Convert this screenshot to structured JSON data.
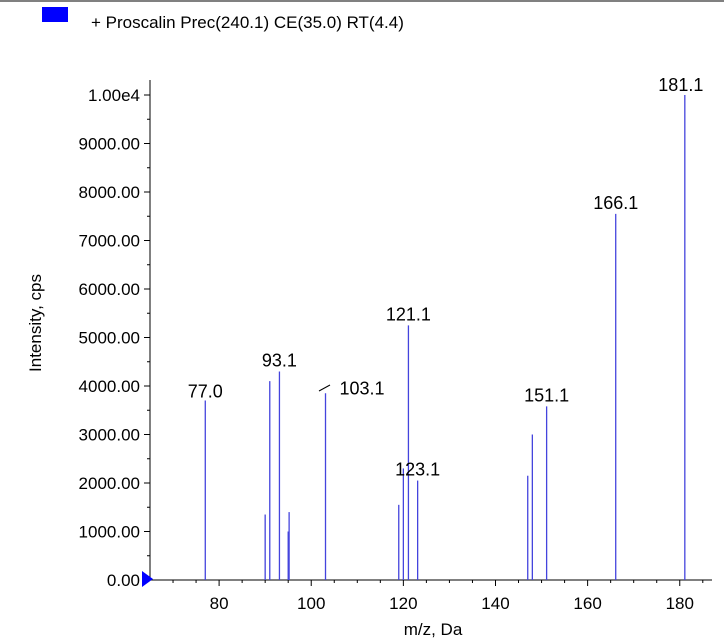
{
  "chart_data": {
    "type": "bar",
    "legend": [
      {
        "label": "+ Proscalin Prec(240.1) CE(35.0) RT(4.4)",
        "color": "#0000ff"
      }
    ],
    "xlabel": "m/z, Da",
    "ylabel": "Intensity, cps",
    "xlim": [
      65,
      187
    ],
    "ylim": [
      0,
      10000
    ],
    "x_ticks": [
      80,
      100,
      120,
      140,
      160,
      180
    ],
    "x_tick_labels": [
      "80",
      "100",
      "120",
      "140",
      "160",
      "180"
    ],
    "y_ticks": [
      0,
      1000,
      2000,
      3000,
      4000,
      5000,
      6000,
      7000,
      8000,
      9000,
      10000
    ],
    "y_tick_labels": [
      "0.00",
      "1000.00",
      "2000.00",
      "3000.00",
      "4000.00",
      "5000.00",
      "6000.00",
      "7000.00",
      "8000.00",
      "9000.00",
      "1.00e4"
    ],
    "line_color": "#4444dd",
    "peaks": [
      {
        "mz": 77.0,
        "intensity": 3700
      },
      {
        "mz": 90.0,
        "intensity": 1350
      },
      {
        "mz": 91.0,
        "intensity": 4100
      },
      {
        "mz": 93.1,
        "intensity": 4300
      },
      {
        "mz": 95.0,
        "intensity": 1000
      },
      {
        "mz": 95.2,
        "intensity": 1400
      },
      {
        "mz": 103.1,
        "intensity": 3850
      },
      {
        "mz": 119.0,
        "intensity": 1550
      },
      {
        "mz": 120.0,
        "intensity": 2300
      },
      {
        "mz": 121.1,
        "intensity": 5250
      },
      {
        "mz": 123.1,
        "intensity": 2050
      },
      {
        "mz": 147.0,
        "intensity": 2150
      },
      {
        "mz": 148.0,
        "intensity": 3000
      },
      {
        "mz": 151.1,
        "intensity": 3580
      },
      {
        "mz": 166.1,
        "intensity": 7550
      },
      {
        "mz": 181.1,
        "intensity": 10000
      }
    ],
    "peak_labels": [
      {
        "text": "77.0",
        "mz": 77.0,
        "intensity": 3700
      },
      {
        "text": "93.1",
        "mz": 93.1,
        "intensity": 4300
      },
      {
        "text": "103.1",
        "mz": 103.1,
        "intensity": 3850
      },
      {
        "text": "121.1",
        "mz": 121.1,
        "intensity": 5250
      },
      {
        "text": "123.1",
        "mz": 123.1,
        "intensity": 2050
      },
      {
        "text": "151.1",
        "mz": 151.1,
        "intensity": 3580
      },
      {
        "text": "166.1",
        "mz": 166.1,
        "intensity": 7550
      },
      {
        "text": "181.1",
        "mz": 181.1,
        "intensity": 10000
      }
    ]
  }
}
